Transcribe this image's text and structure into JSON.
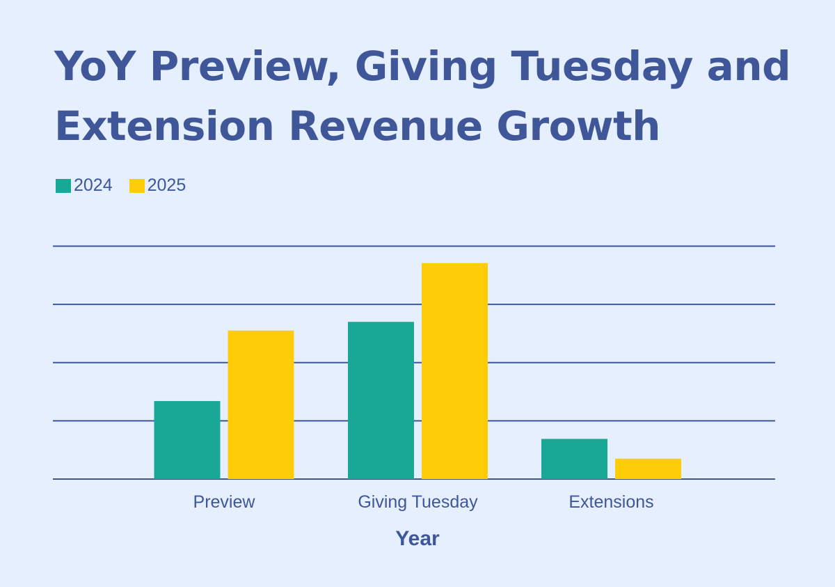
{
  "chart_data": {
    "type": "bar",
    "title": "YoY Preview, Giving Tuesday and Extension Revenue Growth",
    "xlabel": "Year",
    "ylabel": "",
    "categories": [
      "Preview",
      "Giving Tuesday",
      "Extensions"
    ],
    "series": [
      {
        "name": "2024",
        "color": "#1aa896",
        "values": [
          1.34,
          2.7,
          0.69
        ]
      },
      {
        "name": "2025",
        "color": "#fecd08",
        "values": [
          2.55,
          3.71,
          0.35
        ]
      }
    ],
    "ylim": [
      0,
      4
    ],
    "ygrid_values": [
      0,
      1,
      2,
      3,
      4
    ],
    "ytick_labels_shown": false,
    "grid": true,
    "legend_position": "top-left",
    "gridline_color": "#3f5699",
    "text_color": "#3f5699",
    "background_color": "#e5effd"
  }
}
